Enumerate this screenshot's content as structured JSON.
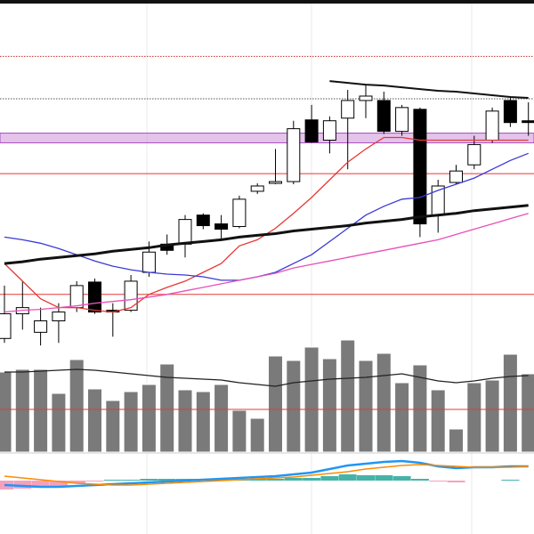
{
  "chart_data": [
    {
      "type": "candlestick",
      "categories": [
        null,
        null,
        null,
        null,
        null,
        null,
        null,
        null,
        null,
        null,
        null,
        null,
        null,
        null,
        null,
        null,
        null,
        null,
        null,
        null,
        null,
        null,
        null,
        null,
        null,
        null,
        null,
        null,
        null,
        null
      ],
      "open": [
        30,
        58,
        37,
        50,
        65,
        94,
        62,
        62,
        105,
        137,
        137,
        170,
        160,
        157,
        197,
        206,
        208,
        278,
        255,
        280,
        300,
        300,
        265,
        290,
        170,
        207,
        227,
        255,
        300,
        277
      ],
      "high": [
        90,
        95,
        65,
        70,
        95,
        98,
        70,
        102,
        140,
        148,
        170,
        172,
        170,
        192,
        206,
        245,
        277,
        295,
        282,
        312,
        318,
        310,
        295,
        292,
        210,
        227,
        260,
        292,
        305,
        298
      ],
      "low": [
        25,
        40,
        22,
        25,
        60,
        58,
        32,
        60,
        100,
        125,
        122,
        154,
        142,
        155,
        194,
        205,
        205,
        252,
        240,
        222,
        280,
        262,
        260,
        145,
        150,
        205,
        222,
        252,
        270,
        260
      ],
      "close": [
        58,
        65,
        50,
        60,
        90,
        60,
        60,
        95,
        128,
        130,
        165,
        158,
        154,
        188,
        203,
        208,
        268,
        253,
        277,
        300,
        305,
        265,
        292,
        160,
        203,
        220,
        250,
        288,
        275,
        275
      ],
      "up_color": "#ffffff",
      "down_color": "#000000",
      "ylim": [
        0,
        410
      ],
      "lines": [
        {
          "color": "#e53935",
          "values": [
            115,
            95,
            75,
            65,
            65,
            62,
            60,
            65,
            80,
            88,
            95,
            105,
            115,
            135,
            142,
            155,
            172,
            190,
            210,
            230,
            245,
            258,
            258,
            255,
            255,
            255,
            255,
            255,
            255,
            255
          ]
        },
        {
          "color": "#3a3ad6",
          "values": [
            145,
            142,
            138,
            132,
            125,
            118,
            112,
            108,
            105,
            103,
            102,
            100,
            96,
            96,
            100,
            105,
            115,
            125,
            140,
            155,
            170,
            180,
            188,
            190,
            198,
            205,
            212,
            222,
            232,
            240
          ]
        },
        {
          "color": "#e84fb8",
          "values": [
            60,
            62,
            63,
            65,
            67,
            70,
            72,
            74,
            77,
            80,
            84,
            88,
            92,
            96,
            100,
            104,
            110,
            114,
            118,
            122,
            126,
            130,
            134,
            138,
            142,
            148,
            154,
            160,
            166,
            172
          ]
        },
        {
          "color": "#111111",
          "width": 3,
          "values": [
            115,
            117,
            120,
            122,
            124,
            126,
            129,
            131,
            133,
            136,
            138,
            140,
            142,
            145,
            147,
            149,
            152,
            154,
            156,
            158,
            161,
            163,
            165,
            168,
            170,
            172,
            175,
            177,
            179,
            181
          ]
        },
        {
          "color": "#111111",
          "width": 2,
          "values": [
            null,
            null,
            null,
            null,
            null,
            null,
            null,
            null,
            null,
            null,
            null,
            null,
            null,
            null,
            null,
            null,
            null,
            null,
            322,
            320,
            318,
            317,
            315,
            313,
            311,
            310,
            308,
            306,
            304,
            303
          ]
        }
      ],
      "hlines": [
        {
          "value": 350,
          "color": "#c62828",
          "dash": true
        },
        {
          "value": 302,
          "color": "#555555",
          "dash": true
        },
        {
          "value": 217,
          "color": "#e53935",
          "dash": false
        },
        {
          "value": 80,
          "color": "#e53935",
          "dash": false
        }
      ],
      "bands": [
        {
          "from": 252,
          "to": 263,
          "color": "#ce93d8"
        }
      ]
    },
    {
      "type": "bar",
      "values": [
        90,
        93,
        93,
        66,
        104,
        71,
        58,
        68,
        76,
        99,
        70,
        68,
        76,
        47,
        38,
        108,
        103,
        118,
        105,
        126,
        103,
        111,
        78,
        98,
        70,
        26,
        78,
        81,
        110,
        88
      ],
      "color": "#7a7a7a",
      "ylim": [
        0,
        130
      ],
      "lines": [
        {
          "color": "#222222",
          "values": [
            90,
            90,
            91,
            92,
            93,
            92,
            90,
            88,
            86,
            84,
            83,
            82,
            81,
            78,
            76,
            74,
            78,
            80,
            82,
            83,
            84,
            86,
            88,
            84,
            80,
            78,
            80,
            83,
            85,
            86
          ]
        }
      ],
      "hlines": [
        {
          "value": 48,
          "color": "#e53935",
          "dash": false
        }
      ]
    },
    {
      "type": "macd",
      "values": [
        -10,
        -9,
        -8,
        -6,
        -3,
        -1,
        1,
        1,
        2,
        2,
        2,
        2,
        2,
        2,
        2,
        2,
        3,
        3,
        5,
        7,
        6,
        6,
        5,
        2,
        -1,
        -2,
        0,
        0,
        1,
        0
      ],
      "up_color": "#26a69a",
      "down_color": "#f48fb1",
      "ylim": [
        -30,
        30
      ],
      "lines": [
        {
          "color": "#2196f3",
          "width": 2.5,
          "values": [
            -5,
            -6,
            -7,
            -7,
            -6,
            -5,
            -4,
            -3,
            -2,
            -1,
            0,
            1,
            2,
            3,
            4,
            5,
            7,
            9,
            13,
            17,
            19,
            21,
            22,
            20,
            16,
            14,
            15,
            15,
            16,
            16
          ]
        },
        {
          "color": "#fb8c00",
          "width": 1.5,
          "values": [
            5,
            3,
            1,
            -1,
            -3,
            -4,
            -5,
            -5,
            -4,
            -3,
            -2,
            -1,
            0,
            1,
            2,
            3,
            4,
            6,
            8,
            10,
            13,
            15,
            17,
            18,
            17,
            16,
            15,
            15,
            15,
            16
          ]
        }
      ]
    }
  ]
}
